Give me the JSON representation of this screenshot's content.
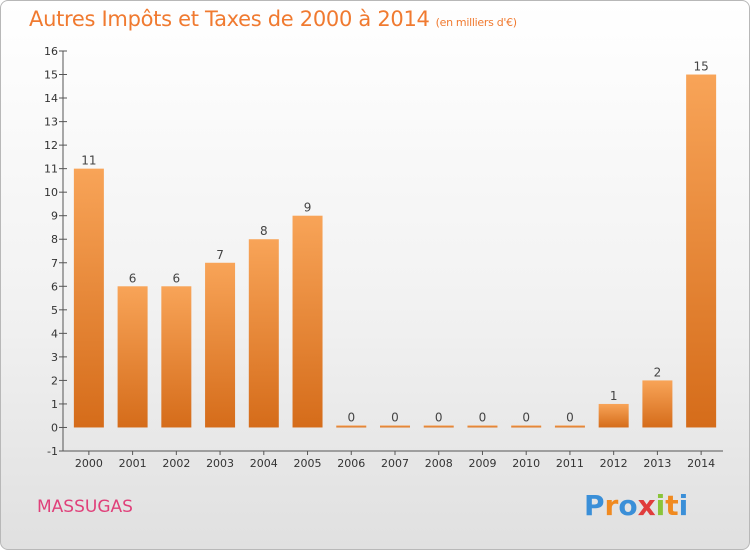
{
  "title": "Autres Impôts et Taxes de 2000 à 2014",
  "unit": "(en milliers d'€)",
  "commune": "MASSUGAS",
  "logo": {
    "text": "Proxiti",
    "colors": [
      "#3a8fd8",
      "#f08a20",
      "#3a8fd8",
      "#e03c3c",
      "#8ac43a",
      "#f08a20",
      "#3a8fd8"
    ]
  },
  "chart_data": {
    "type": "bar",
    "title": "Autres Impôts et Taxes de 2000 à 2014",
    "categories": [
      "2000",
      "2001",
      "2002",
      "2003",
      "2004",
      "2005",
      "2006",
      "2007",
      "2008",
      "2009",
      "2010",
      "2011",
      "2012",
      "2013",
      "2014"
    ],
    "values": [
      11,
      6,
      6,
      7,
      8,
      9,
      0,
      0,
      0,
      0,
      0,
      0,
      1,
      2,
      15
    ],
    "ylim": [
      -1,
      16
    ],
    "yticks": [
      -1,
      0,
      1,
      2,
      3,
      4,
      5,
      6,
      7,
      8,
      9,
      10,
      11,
      12,
      13,
      14,
      15,
      16
    ],
    "grid": false,
    "bar_color": "#f08a30"
  }
}
